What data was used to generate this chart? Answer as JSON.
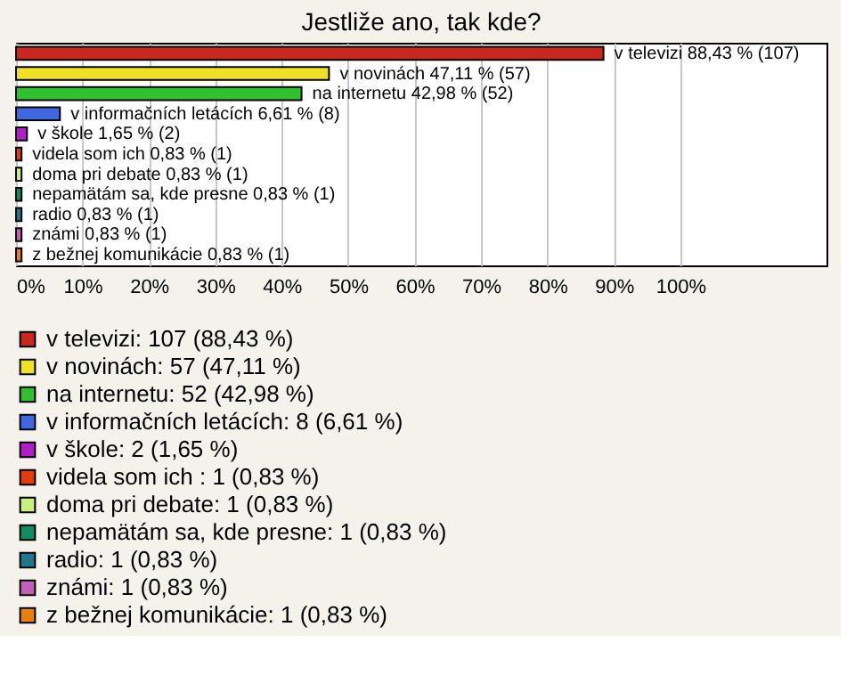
{
  "chart_data": {
    "type": "bar",
    "orientation": "horizontal",
    "title": "Jestliže ano, tak kde?",
    "categories": [
      null,
      null,
      null,
      null,
      null,
      null,
      null,
      null,
      null,
      null,
      null
    ],
    "series": [
      {
        "name": "v televizi: 107 (88,43 %)",
        "color": "#c8281e",
        "values": [
          88.43,
          null,
          null,
          null,
          null,
          null,
          null,
          null,
          null,
          null,
          null
        ],
        "value_labels": [
          "v televizi 88,43 % (107)",
          null,
          null,
          null,
          null,
          null,
          null,
          null,
          null,
          null,
          null
        ]
      },
      {
        "name": "v novinách: 57 (47,11 %)",
        "color": "#f0e028",
        "values": [
          null,
          47.11,
          null,
          null,
          null,
          null,
          null,
          null,
          null,
          null,
          null
        ],
        "value_labels": [
          null,
          "v novinách 47,11 % (57)",
          null,
          null,
          null,
          null,
          null,
          null,
          null,
          null,
          null
        ]
      },
      {
        "name": "na internetu: 52 (42,98 %)",
        "color": "#30c030",
        "values": [
          null,
          null,
          42.98,
          null,
          null,
          null,
          null,
          null,
          null,
          null,
          null
        ],
        "value_labels": [
          null,
          null,
          "na internetu 42,98 % (52)",
          null,
          null,
          null,
          null,
          null,
          null,
          null,
          null
        ]
      },
      {
        "name": "v informačních letácích: 8 (6,61 %)",
        "color": "#4068e0",
        "values": [
          null,
          null,
          null,
          6.61,
          null,
          null,
          null,
          null,
          null,
          null,
          null
        ],
        "value_labels": [
          null,
          null,
          null,
          "v informačních letácích 6,61 % (8)",
          null,
          null,
          null,
          null,
          null,
          null,
          null
        ]
      },
      {
        "name": "v škole: 2 (1,65 %)",
        "color": "#b020c8",
        "values": [
          null,
          null,
          null,
          null,
          1.65,
          null,
          null,
          null,
          null,
          null,
          null
        ],
        "value_labels": [
          null,
          null,
          null,
          null,
          "v škole 1,65 % (2)",
          null,
          null,
          null,
          null,
          null,
          null
        ]
      },
      {
        "name": "videla som ich : 1 (0,83 %)",
        "color": "#e03c10",
        "values": [
          null,
          null,
          null,
          null,
          null,
          0.83,
          null,
          null,
          null,
          null,
          null
        ],
        "value_labels": [
          null,
          null,
          null,
          null,
          null,
          "videla som ich  0,83 % (1)",
          null,
          null,
          null,
          null,
          null
        ]
      },
      {
        "name": "doma pri debate: 1 (0,83 %)",
        "color": "#c8f080",
        "values": [
          null,
          null,
          null,
          null,
          null,
          null,
          0.83,
          null,
          null,
          null,
          null
        ],
        "value_labels": [
          null,
          null,
          null,
          null,
          null,
          null,
          "doma pri debate 0,83 % (1)",
          null,
          null,
          null,
          null
        ]
      },
      {
        "name": "nepamätám sa, kde presne: 1 (0,83 %)",
        "color": "#108c60",
        "values": [
          null,
          null,
          null,
          null,
          null,
          null,
          null,
          0.83,
          null,
          null,
          null
        ],
        "value_labels": [
          null,
          null,
          null,
          null,
          null,
          null,
          null,
          "nepamätám sa, kde presne 0,83 % (1)",
          null,
          null,
          null
        ]
      },
      {
        "name": "radio: 1 (0,83 %)",
        "color": "#207890",
        "values": [
          null,
          null,
          null,
          null,
          null,
          null,
          null,
          null,
          0.83,
          null,
          null
        ],
        "value_labels": [
          null,
          null,
          null,
          null,
          null,
          null,
          null,
          null,
          "radio 0,83 % (1)",
          null,
          null
        ]
      },
      {
        "name": "známi: 1 (0,83 %)",
        "color": "#c060b8",
        "values": [
          null,
          null,
          null,
          null,
          null,
          null,
          null,
          null,
          null,
          0.83,
          null
        ],
        "value_labels": [
          null,
          null,
          null,
          null,
          null,
          null,
          null,
          null,
          null,
          "známi 0,83 % (1)",
          null
        ]
      },
      {
        "name": "z bežnej komunikácie: 1 (0,83 %)",
        "color": "#e88010",
        "values": [
          null,
          null,
          null,
          null,
          null,
          null,
          null,
          null,
          null,
          null,
          0.83
        ],
        "value_labels": [
          null,
          null,
          null,
          null,
          null,
          null,
          null,
          null,
          null,
          null,
          "z bežnej komunikácie 0,83 % (1)"
        ]
      }
    ],
    "xlim": [
      0,
      122
    ],
    "xticks": [
      {
        "value": 0,
        "label": "0%"
      },
      {
        "value": 10,
        "label": "10%"
      },
      {
        "value": 20,
        "label": "20%"
      },
      {
        "value": 30,
        "label": "30%"
      },
      {
        "value": 40,
        "label": "40%"
      },
      {
        "value": 50,
        "label": "50%"
      },
      {
        "value": 60,
        "label": "60%"
      },
      {
        "value": 70,
        "label": "70%"
      },
      {
        "value": 80,
        "label": "80%"
      },
      {
        "value": 90,
        "label": "90%"
      },
      {
        "value": 100,
        "label": "100%"
      }
    ],
    "grid": "x",
    "legend": "bottom",
    "tick_labels": "x"
  }
}
